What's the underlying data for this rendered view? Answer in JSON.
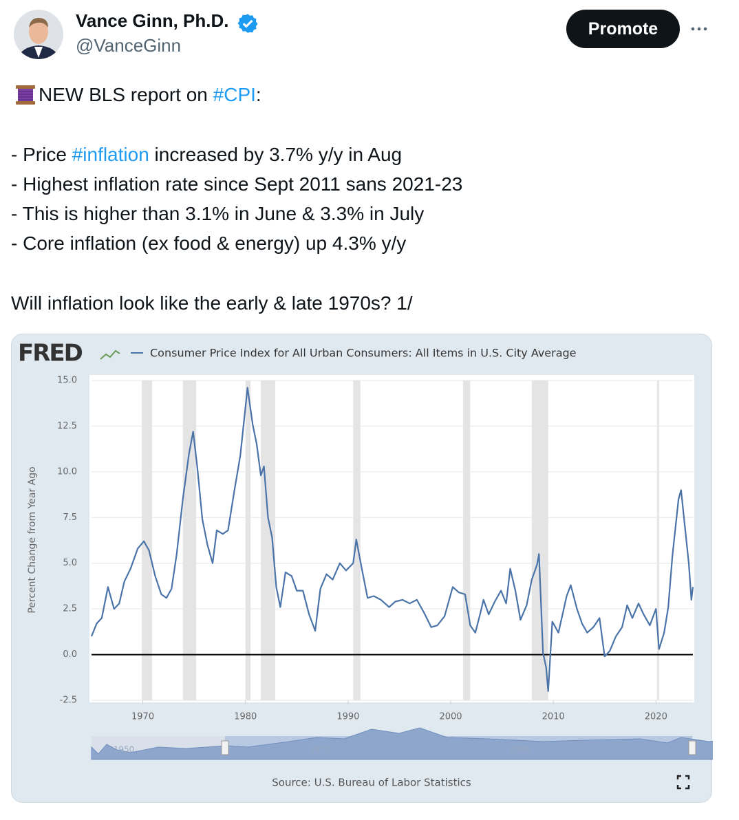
{
  "tweet": {
    "name": "Vance Ginn, Ph.D.",
    "handle": "@VanceGinn",
    "button": "Promote",
    "lines": [
      [
        {
          "text": "NEW BLS report on "
        },
        {
          "text": "#CPI",
          "link": true
        },
        {
          "text": ":"
        }
      ],
      [
        {
          "text": "- Price "
        },
        {
          "text": "#inflation",
          "link": true
        },
        {
          "text": " increased by 3.7% y/y in Aug"
        }
      ],
      [
        {
          "text": "- Highest inflation rate since Sept 2011 sans 2021-23"
        }
      ],
      [
        {
          "text": "- This is higher than 3.1% in June & 3.3% in July"
        }
      ],
      [
        {
          "text": "- Core inflation (ex food & energy) up 4.3% y/y"
        }
      ],
      [
        {
          "text": "Will inflation look like the early & late 1970s? 1/"
        }
      ]
    ]
  },
  "chart_data": {
    "type": "line",
    "logo": "FRED",
    "ylabel": "Percent Change from Year Ago",
    "source": "Source: U.S. Bureau of Labor Statistics",
    "navigator_labels": [
      "1950",
      "1975",
      "2000"
    ],
    "xlim": [
      1965,
      2023.6
    ],
    "ylim": [
      -2.5,
      15
    ],
    "xticks": [
      1970,
      1980,
      1990,
      2000,
      2010,
      2020
    ],
    "yticks": [
      {
        "value": -2.5,
        "label": "-2.5"
      },
      {
        "value": 0,
        "label": "0.0"
      },
      {
        "value": 2.5,
        "label": "2.5"
      },
      {
        "value": 5,
        "label": "5.0"
      },
      {
        "value": 7.5,
        "label": "7.5"
      },
      {
        "value": 10,
        "label": "10.0"
      },
      {
        "value": 12.5,
        "label": "12.5"
      },
      {
        "value": 15,
        "label": "15.0"
      }
    ],
    "grid": true,
    "recessions": [
      [
        1969.9,
        1970.9
      ],
      [
        1973.9,
        1975.2
      ],
      [
        1980.0,
        1980.5
      ],
      [
        1981.5,
        1982.9
      ],
      [
        1990.5,
        1991.2
      ],
      [
        2001.2,
        2001.9
      ],
      [
        2007.9,
        2009.5
      ],
      [
        2020.1,
        2020.3
      ]
    ],
    "x": [
      1965.0,
      1965.5,
      1966.0,
      1966.6,
      1967.2,
      1967.7,
      1968.2,
      1968.8,
      1969.5,
      1970.1,
      1970.6,
      1971.2,
      1971.8,
      1972.3,
      1972.8,
      1973.3,
      1973.9,
      1974.5,
      1974.9,
      1975.3,
      1975.8,
      1976.3,
      1976.8,
      1977.2,
      1977.8,
      1978.3,
      1978.9,
      1979.5,
      1980.2,
      1980.7,
      1981.1,
      1981.5,
      1981.8,
      1982.2,
      1982.6,
      1983.0,
      1983.4,
      1983.9,
      1984.5,
      1985.0,
      1985.6,
      1986.2,
      1986.8,
      1987.3,
      1987.9,
      1988.5,
      1989.2,
      1989.8,
      1990.5,
      1990.8,
      1991.3,
      1991.9,
      1992.5,
      1993.2,
      1994.0,
      1994.6,
      1995.3,
      1996.0,
      1996.7,
      1997.4,
      1998.1,
      1998.7,
      1999.4,
      2000.2,
      2000.8,
      2001.4,
      2001.9,
      2002.4,
      2002.9,
      2003.2,
      2003.7,
      2004.3,
      2004.9,
      2005.4,
      2005.8,
      2006.3,
      2006.8,
      2007.4,
      2007.9,
      2008.4,
      2008.6,
      2009.0,
      2009.3,
      2009.5,
      2009.9,
      2010.5,
      2011.3,
      2011.7,
      2012.3,
      2012.8,
      2013.3,
      2013.9,
      2014.5,
      2015.0,
      2015.5,
      2016.1,
      2016.7,
      2017.2,
      2017.7,
      2018.3,
      2018.8,
      2019.4,
      2020.0,
      2020.3,
      2020.8,
      2021.2,
      2021.6,
      2022.2,
      2022.45,
      2022.8,
      2023.2,
      2023.45,
      2023.6
    ],
    "series": [
      {
        "name": "Consumer Price Index for All Urban Consumers: All Items in U.S. City Average",
        "color": "#4a74a8",
        "values": [
          1.0,
          1.7,
          2.0,
          3.7,
          2.5,
          2.8,
          4.0,
          4.7,
          5.8,
          6.2,
          5.7,
          4.3,
          3.3,
          3.1,
          3.6,
          5.5,
          8.5,
          11.0,
          12.2,
          10.3,
          7.4,
          6.0,
          5.0,
          6.8,
          6.6,
          6.8,
          8.9,
          10.9,
          14.6,
          12.6,
          11.5,
          9.8,
          10.3,
          7.5,
          6.4,
          3.7,
          2.6,
          4.5,
          4.3,
          3.5,
          3.5,
          2.2,
          1.3,
          3.6,
          4.4,
          4.1,
          5.0,
          4.6,
          5.0,
          6.3,
          4.8,
          3.1,
          3.2,
          3.0,
          2.6,
          2.9,
          3.0,
          2.8,
          3.0,
          2.3,
          1.5,
          1.6,
          2.1,
          3.7,
          3.4,
          3.3,
          1.6,
          1.2,
          2.3,
          3.0,
          2.2,
          2.9,
          3.5,
          2.8,
          4.7,
          3.5,
          1.9,
          2.7,
          4.1,
          4.9,
          5.5,
          0.1,
          -0.7,
          -2.0,
          1.8,
          1.2,
          3.2,
          3.8,
          2.5,
          1.7,
          1.2,
          1.5,
          2.0,
          -0.1,
          0.2,
          1.0,
          1.5,
          2.7,
          2.0,
          2.8,
          2.2,
          1.6,
          2.5,
          0.3,
          1.2,
          2.6,
          5.4,
          8.5,
          9.0,
          7.1,
          5.0,
          3.0,
          3.7
        ]
      }
    ]
  }
}
